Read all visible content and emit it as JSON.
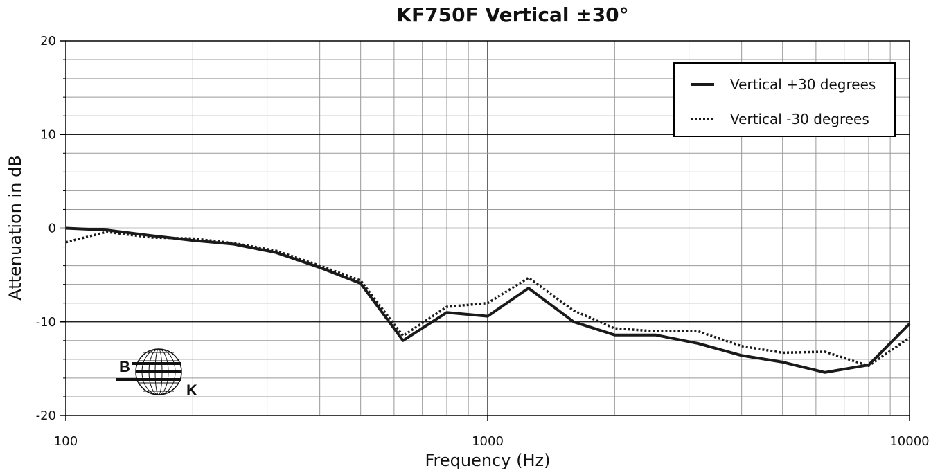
{
  "chart_data": {
    "type": "line",
    "title": "KF750F Vertical  ±30°",
    "xlabel": "Frequency (Hz)",
    "ylabel": "Attenuation in dB",
    "x_scale": "log",
    "xlim": [
      100,
      10000
    ],
    "ylim": [
      -20,
      20
    ],
    "x_ticks": [
      100,
      1000,
      10000
    ],
    "x_tick_labels": [
      "100",
      "1000",
      "10000"
    ],
    "y_ticks": [
      -20,
      -10,
      0,
      10,
      20
    ],
    "y_tick_labels": [
      "-20",
      "-10",
      "0",
      "10",
      "20"
    ],
    "grid": true,
    "legend_position": "top-right",
    "colors": {
      "line": "#1a1a1a",
      "grid_minor": "#999999",
      "grid_major": "#000000"
    },
    "x": [
      100,
      125,
      160,
      200,
      250,
      315,
      400,
      500,
      630,
      800,
      1000,
      1250,
      1600,
      2000,
      2500,
      3150,
      4000,
      5000,
      6300,
      8000,
      10000
    ],
    "series": [
      {
        "name": "Vertical +30 degrees",
        "style": "solid",
        "values": [
          0,
          -0.2,
          -0.8,
          -1.3,
          -1.7,
          -2.6,
          -4.2,
          -5.9,
          -12.0,
          -9.0,
          -9.4,
          -6.4,
          -10.0,
          -11.4,
          -11.4,
          -12.3,
          -13.6,
          -14.3,
          -15.4,
          -14.6,
          -10.2
        ]
      },
      {
        "name": "Vertical -30 degrees",
        "style": "dotted",
        "values": [
          -1.5,
          -0.4,
          -1.0,
          -1.1,
          -1.6,
          -2.4,
          -4.0,
          -5.6,
          -11.5,
          -8.4,
          -8.0,
          -5.3,
          -8.8,
          -10.7,
          -11.0,
          -11.0,
          -12.6,
          -13.3,
          -13.2,
          -14.7,
          -11.7
        ]
      }
    ]
  }
}
